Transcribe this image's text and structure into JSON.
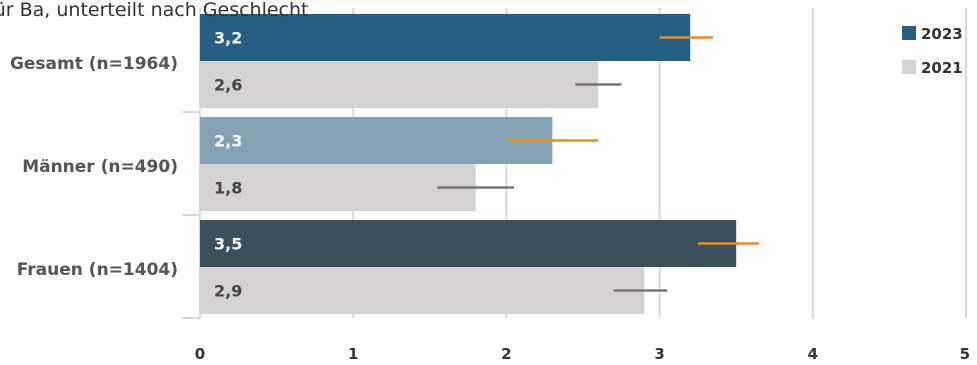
{
  "chart_data": {
    "type": "bar",
    "orientation": "horizontal",
    "title": "gn: Ausgaben für Ba, unterteilt nach Geschlecht",
    "categories": [
      "Gesamt (n=1964)",
      "Männer (n=490)",
      "Frauen (n=1404)"
    ],
    "series": [
      {
        "name": "2023",
        "values": [
          3.2,
          2.3,
          3.5
        ],
        "labels": [
          "3,2",
          "2,3",
          "3,5"
        ],
        "error_low": [
          3.0,
          2.0,
          3.25
        ],
        "error_high": [
          3.35,
          2.6,
          3.65
        ],
        "bar_colors": [
          "#245f82",
          "#85a2b4",
          "#3b4e5c"
        ],
        "error_color": "#f08c1e",
        "label_color": "#ffffff"
      },
      {
        "name": "2021",
        "values": [
          2.6,
          1.8,
          2.9
        ],
        "labels": [
          "2,6",
          "1,8",
          "2,9"
        ],
        "error_low": [
          2.45,
          1.55,
          2.7
        ],
        "error_high": [
          2.75,
          2.05,
          3.05
        ],
        "bar_colors": [
          "#d4d2d3",
          "#d4d2d3",
          "#d4d2d3"
        ],
        "error_color": "#777777",
        "label_color": "#444444"
      }
    ],
    "xticks": [
      "0",
      "1",
      "2",
      "3",
      "4",
      "5"
    ],
    "xlim": [
      0,
      5
    ],
    "grid": true,
    "legend_position": "top-right",
    "legend_colors": [
      "#245f82",
      "#d4d2d3"
    ]
  }
}
